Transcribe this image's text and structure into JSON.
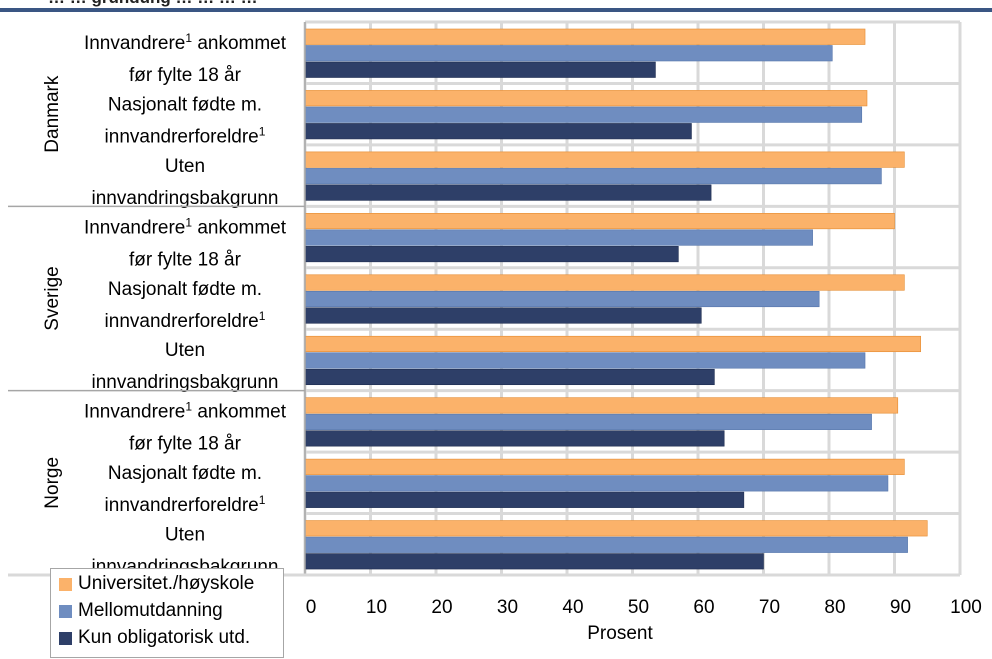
{
  "chart_data": {
    "type": "bar",
    "orientation": "horizontal",
    "title": "… … gründung … … … …",
    "xlabel": "Prosent",
    "xlim": [
      0,
      100
    ],
    "xticks": [
      0,
      10,
      20,
      30,
      40,
      50,
      60,
      70,
      80,
      90,
      100
    ],
    "grid": true,
    "legend_position": "bottom-left",
    "groups": [
      {
        "name": "Danmark",
        "categories": [
          {
            "lines": [
              {
                "text": "Innvandrere",
                "sup": "1",
                "after": " ankommet"
              },
              {
                "text": "før fylte 18 år"
              }
            ],
            "values": [
              85.5,
              80.5,
              53.5
            ]
          },
          {
            "lines": [
              {
                "text": "Nasjonalt fødte m."
              },
              {
                "text": "innvandrerforeldre",
                "sup": "1"
              }
            ],
            "values": [
              85.8,
              85.0,
              59.0
            ]
          },
          {
            "lines": [
              {
                "text": "Uten"
              },
              {
                "text": "innvandringsbakgrunn"
              }
            ],
            "values": [
              91.5,
              88.0,
              62.0
            ]
          }
        ]
      },
      {
        "name": "Sverige",
        "categories": [
          {
            "lines": [
              {
                "text": "Innvandrere",
                "sup": "1",
                "after": " ankommet"
              },
              {
                "text": "før fylte 18 år"
              }
            ],
            "values": [
              90.0,
              77.5,
              57.0
            ]
          },
          {
            "lines": [
              {
                "text": "Nasjonalt fødte m."
              },
              {
                "text": "innvandrerforeldre",
                "sup": "1"
              }
            ],
            "values": [
              91.5,
              78.5,
              60.5
            ]
          },
          {
            "lines": [
              {
                "text": "Uten"
              },
              {
                "text": "innvandringsbakgrunn"
              }
            ],
            "values": [
              94.0,
              85.5,
              62.5
            ]
          }
        ]
      },
      {
        "name": "Norge",
        "categories": [
          {
            "lines": [
              {
                "text": "Innvandrere",
                "sup": "1",
                "after": " ankommet"
              },
              {
                "text": "før fylte 18 år"
              }
            ],
            "values": [
              90.5,
              86.5,
              64.0
            ]
          },
          {
            "lines": [
              {
                "text": "Nasjonalt fødte m."
              },
              {
                "text": "innvandrerforeldre",
                "sup": "1"
              }
            ],
            "values": [
              91.5,
              89.0,
              67.0
            ]
          },
          {
            "lines": [
              {
                "text": "Uten"
              },
              {
                "text": "innvandringsbakgrunn"
              }
            ],
            "values": [
              95.0,
              92.0,
              70.0
            ]
          }
        ]
      }
    ],
    "series": [
      {
        "name": "Universitet./høyskole",
        "color": "#fbb26a",
        "edge": "#e58a2e"
      },
      {
        "name": "Mellomutdanning",
        "color": "#6f8dc0",
        "edge": "#5676ab"
      },
      {
        "name": "Kun obligatorisk utd.",
        "color": "#2e3f68",
        "edge": "#1f2d50"
      }
    ]
  },
  "colors": {
    "header_rule": "#3a5683",
    "grid": "#d9d9d9",
    "axis": "#a6a6a6"
  }
}
